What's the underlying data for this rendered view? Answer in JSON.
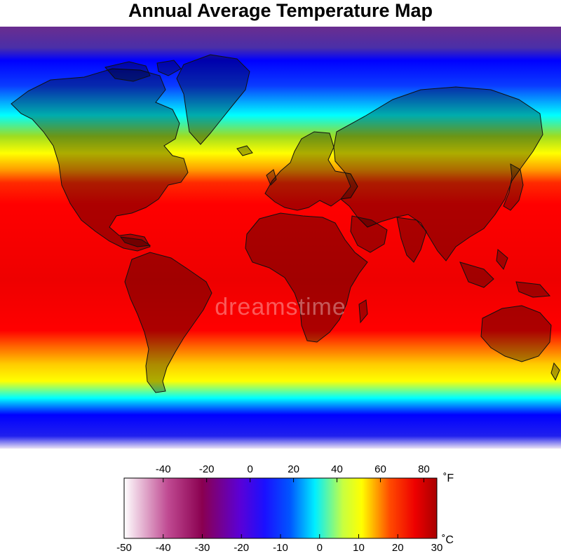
{
  "title": "Annual Average Temperature Map",
  "watermark": "dreamstime",
  "map": {
    "bands": [
      {
        "offset": 0.0,
        "color": "#6a2d8f"
      },
      {
        "offset": 0.05,
        "color": "#4a2fa8"
      },
      {
        "offset": 0.08,
        "color": "#0000ff"
      },
      {
        "offset": 0.14,
        "color": "#0a3cff"
      },
      {
        "offset": 0.21,
        "color": "#00ffff"
      },
      {
        "offset": 0.26,
        "color": "#9fdc20"
      },
      {
        "offset": 0.3,
        "color": "#ffff00"
      },
      {
        "offset": 0.34,
        "color": "#ff9a00"
      },
      {
        "offset": 0.37,
        "color": "#ff2a00"
      },
      {
        "offset": 0.42,
        "color": "#ff0000"
      },
      {
        "offset": 0.6,
        "color": "#ee0000"
      },
      {
        "offset": 0.72,
        "color": "#ff0000"
      },
      {
        "offset": 0.76,
        "color": "#ff6a00"
      },
      {
        "offset": 0.8,
        "color": "#ffcc00"
      },
      {
        "offset": 0.84,
        "color": "#ffff00"
      },
      {
        "offset": 0.88,
        "color": "#00ffff"
      },
      {
        "offset": 0.92,
        "color": "#0000ff"
      },
      {
        "offset": 0.97,
        "color": "#2020ee"
      },
      {
        "offset": 1.0,
        "color": "#ece4f4"
      }
    ],
    "land_tint": "#000000",
    "coast_color": "#111111"
  },
  "legend": {
    "fahrenheit_unit": "˚F",
    "celsius_unit": "˚C",
    "fahrenheit_ticks": [
      "-40",
      "-20",
      "0",
      "20",
      "40",
      "60",
      "80"
    ],
    "fahrenheit_values": [
      -40,
      -20,
      0,
      20,
      40,
      60,
      80
    ],
    "celsius_ticks": [
      "-50",
      "-40",
      "-30",
      "-20",
      "-10",
      "0",
      "10",
      "20",
      "30"
    ],
    "celsius_values": [
      -50,
      -40,
      -30,
      -20,
      -10,
      0,
      10,
      20,
      30
    ],
    "celsius_range": [
      -50,
      30
    ],
    "stops": [
      {
        "offset": 0.0,
        "color": "#ffffff"
      },
      {
        "offset": 0.14,
        "color": "#c04a92"
      },
      {
        "offset": 0.25,
        "color": "#8a0050"
      },
      {
        "offset": 0.37,
        "color": "#5b00d6"
      },
      {
        "offset": 0.45,
        "color": "#1a10ff"
      },
      {
        "offset": 0.53,
        "color": "#0055ff"
      },
      {
        "offset": 0.61,
        "color": "#00eeff"
      },
      {
        "offset": 0.7,
        "color": "#c8ff40"
      },
      {
        "offset": 0.76,
        "color": "#ffff00"
      },
      {
        "offset": 0.85,
        "color": "#ff4a00"
      },
      {
        "offset": 0.93,
        "color": "#ee0000"
      },
      {
        "offset": 1.0,
        "color": "#a80000"
      }
    ]
  }
}
